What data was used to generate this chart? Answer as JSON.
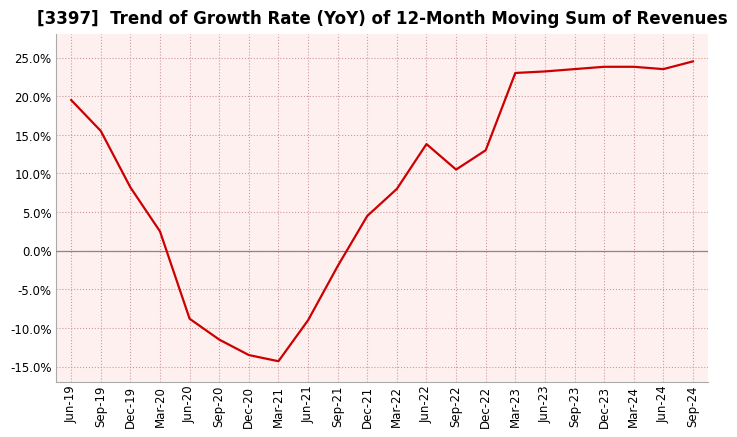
{
  "title": "[3397]  Trend of Growth Rate (YoY) of 12-Month Moving Sum of Revenues",
  "x_labels": [
    "Jun-19",
    "Sep-19",
    "Dec-19",
    "Mar-20",
    "Jun-20",
    "Sep-20",
    "Dec-20",
    "Mar-21",
    "Jun-21",
    "Sep-21",
    "Dec-21",
    "Mar-22",
    "Jun-22",
    "Sep-22",
    "Dec-22",
    "Mar-23",
    "Jun-23",
    "Sep-23",
    "Dec-23",
    "Mar-24",
    "Jun-24",
    "Sep-24"
  ],
  "y_values": [
    0.195,
    0.155,
    0.082,
    0.025,
    -0.088,
    -0.115,
    -0.135,
    -0.143,
    -0.09,
    -0.02,
    0.045,
    0.08,
    0.138,
    0.105,
    0.13,
    0.23,
    0.232,
    0.235,
    0.238,
    0.238,
    0.235,
    0.245
  ],
  "line_color": "#cc0000",
  "background_color": "#ffffff",
  "plot_bg_color": "#fff0f0",
  "grid_color": "#cc9999",
  "ylim": [
    -0.17,
    0.28
  ],
  "yticks": [
    -0.15,
    -0.1,
    -0.05,
    0.0,
    0.05,
    0.1,
    0.15,
    0.2,
    0.25
  ],
  "title_fontsize": 12,
  "tick_fontsize": 8.5,
  "line_width": 1.6
}
